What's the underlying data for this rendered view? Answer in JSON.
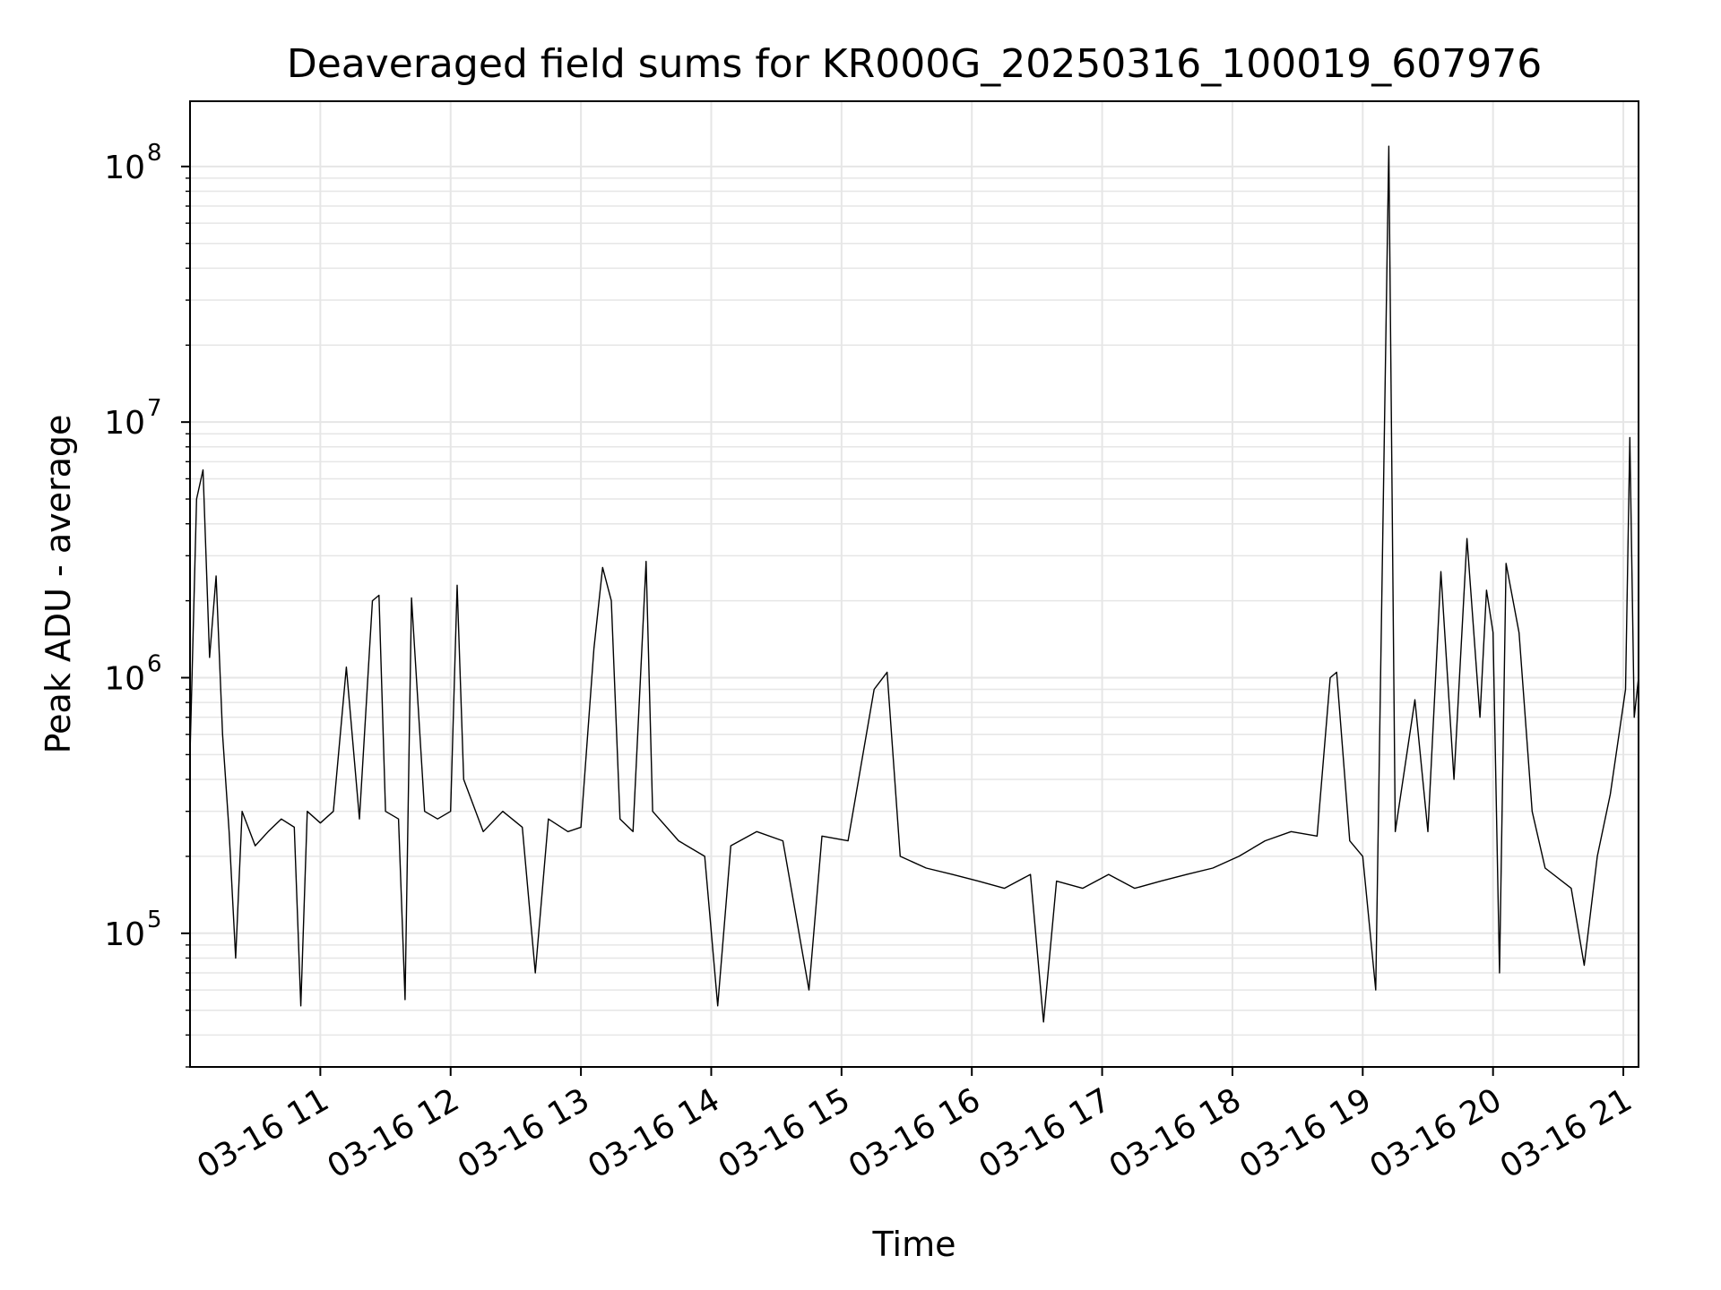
{
  "chart_data": {
    "type": "line",
    "title": "Deaveraged field sums for KR000G_20250316_100019_607976",
    "xlabel": "Time",
    "ylabel": "Peak ADU - average",
    "yscale": "log",
    "ylim": [
      30000,
      180000000
    ],
    "xlim": [
      "2025-03-16 10:00",
      "2025-03-16 21:07"
    ],
    "grid": true,
    "x_ticks": [
      {
        "label": "03-16 11",
        "time": "2025-03-16 11:00"
      },
      {
        "label": "03-16 12",
        "time": "2025-03-16 12:00"
      },
      {
        "label": "03-16 13",
        "time": "2025-03-16 13:00"
      },
      {
        "label": "03-16 14",
        "time": "2025-03-16 14:00"
      },
      {
        "label": "03-16 15",
        "time": "2025-03-16 15:00"
      },
      {
        "label": "03-16 16",
        "time": "2025-03-16 16:00"
      },
      {
        "label": "03-16 17",
        "time": "2025-03-16 17:00"
      },
      {
        "label": "03-16 18",
        "time": "2025-03-16 18:00"
      },
      {
        "label": "03-16 19",
        "time": "2025-03-16 19:00"
      },
      {
        "label": "03-16 20",
        "time": "2025-03-16 20:00"
      },
      {
        "label": "03-16 21",
        "time": "2025-03-16 21:00"
      }
    ],
    "y_ticks": [
      {
        "base": "10",
        "exp": "5",
        "value": 100000
      },
      {
        "base": "10",
        "exp": "6",
        "value": 1000000
      },
      {
        "base": "10",
        "exp": "7",
        "value": 10000000
      },
      {
        "base": "10",
        "exp": "8",
        "value": 100000000
      }
    ],
    "series": [
      {
        "color": "#000000",
        "points": [
          [
            "2025-03-16 10:00",
            500000
          ],
          [
            "2025-03-16 10:03",
            5000000
          ],
          [
            "2025-03-16 10:06",
            6500000
          ],
          [
            "2025-03-16 10:09",
            1200000
          ],
          [
            "2025-03-16 10:12",
            2500000
          ],
          [
            "2025-03-16 10:15",
            600000
          ],
          [
            "2025-03-16 10:18",
            250000
          ],
          [
            "2025-03-16 10:21",
            80000
          ],
          [
            "2025-03-16 10:24",
            300000
          ],
          [
            "2025-03-16 10:30",
            220000
          ],
          [
            "2025-03-16 10:36",
            250000
          ],
          [
            "2025-03-16 10:42",
            280000
          ],
          [
            "2025-03-16 10:48",
            260000
          ],
          [
            "2025-03-16 10:51",
            52000
          ],
          [
            "2025-03-16 10:54",
            300000
          ],
          [
            "2025-03-16 11:00",
            270000
          ],
          [
            "2025-03-16 11:06",
            300000
          ],
          [
            "2025-03-16 11:12",
            1100000
          ],
          [
            "2025-03-16 11:18",
            280000
          ],
          [
            "2025-03-16 11:24",
            2000000
          ],
          [
            "2025-03-16 11:27",
            2100000
          ],
          [
            "2025-03-16 11:30",
            300000
          ],
          [
            "2025-03-16 11:36",
            280000
          ],
          [
            "2025-03-16 11:39",
            55000
          ],
          [
            "2025-03-16 11:42",
            2050000
          ],
          [
            "2025-03-16 11:48",
            300000
          ],
          [
            "2025-03-16 11:54",
            280000
          ],
          [
            "2025-03-16 12:00",
            300000
          ],
          [
            "2025-03-16 12:03",
            2300000
          ],
          [
            "2025-03-16 12:06",
            400000
          ],
          [
            "2025-03-16 12:15",
            250000
          ],
          [
            "2025-03-16 12:24",
            300000
          ],
          [
            "2025-03-16 12:33",
            260000
          ],
          [
            "2025-03-16 12:39",
            70000
          ],
          [
            "2025-03-16 12:45",
            280000
          ],
          [
            "2025-03-16 12:54",
            250000
          ],
          [
            "2025-03-16 13:00",
            260000
          ],
          [
            "2025-03-16 13:06",
            1300000
          ],
          [
            "2025-03-16 13:10",
            2700000
          ],
          [
            "2025-03-16 13:14",
            2000000
          ],
          [
            "2025-03-16 13:18",
            280000
          ],
          [
            "2025-03-16 13:24",
            250000
          ],
          [
            "2025-03-16 13:30",
            2850000
          ],
          [
            "2025-03-16 13:33",
            300000
          ],
          [
            "2025-03-16 13:45",
            230000
          ],
          [
            "2025-03-16 13:57",
            200000
          ],
          [
            "2025-03-16 14:03",
            52000
          ],
          [
            "2025-03-16 14:09",
            220000
          ],
          [
            "2025-03-16 14:21",
            250000
          ],
          [
            "2025-03-16 14:33",
            230000
          ],
          [
            "2025-03-16 14:45",
            60000
          ],
          [
            "2025-03-16 14:51",
            240000
          ],
          [
            "2025-03-16 15:03",
            230000
          ],
          [
            "2025-03-16 15:15",
            900000
          ],
          [
            "2025-03-16 15:21",
            1050000
          ],
          [
            "2025-03-16 15:27",
            200000
          ],
          [
            "2025-03-16 15:39",
            180000
          ],
          [
            "2025-03-16 15:51",
            170000
          ],
          [
            "2025-03-16 16:03",
            160000
          ],
          [
            "2025-03-16 16:15",
            150000
          ],
          [
            "2025-03-16 16:27",
            170000
          ],
          [
            "2025-03-16 16:33",
            45000
          ],
          [
            "2025-03-16 16:39",
            160000
          ],
          [
            "2025-03-16 16:51",
            150000
          ],
          [
            "2025-03-16 17:03",
            170000
          ],
          [
            "2025-03-16 17:15",
            150000
          ],
          [
            "2025-03-16 17:27",
            160000
          ],
          [
            "2025-03-16 17:39",
            170000
          ],
          [
            "2025-03-16 17:51",
            180000
          ],
          [
            "2025-03-16 18:03",
            200000
          ],
          [
            "2025-03-16 18:15",
            230000
          ],
          [
            "2025-03-16 18:27",
            250000
          ],
          [
            "2025-03-16 18:39",
            240000
          ],
          [
            "2025-03-16 18:45",
            1000000
          ],
          [
            "2025-03-16 18:48",
            1050000
          ],
          [
            "2025-03-16 18:54",
            230000
          ],
          [
            "2025-03-16 19:00",
            200000
          ],
          [
            "2025-03-16 19:06",
            60000
          ],
          [
            "2025-03-16 19:12",
            120000000
          ],
          [
            "2025-03-16 19:15",
            250000
          ],
          [
            "2025-03-16 19:24",
            820000
          ],
          [
            "2025-03-16 19:30",
            250000
          ],
          [
            "2025-03-16 19:36",
            2600000
          ],
          [
            "2025-03-16 19:42",
            400000
          ],
          [
            "2025-03-16 19:48",
            3500000
          ],
          [
            "2025-03-16 19:54",
            700000
          ],
          [
            "2025-03-16 19:57",
            2200000
          ],
          [
            "2025-03-16 20:00",
            1500000
          ],
          [
            "2025-03-16 20:03",
            70000
          ],
          [
            "2025-03-16 20:06",
            2800000
          ],
          [
            "2025-03-16 20:12",
            1500000
          ],
          [
            "2025-03-16 20:18",
            300000
          ],
          [
            "2025-03-16 20:24",
            180000
          ],
          [
            "2025-03-16 20:36",
            150000
          ],
          [
            "2025-03-16 20:42",
            75000
          ],
          [
            "2025-03-16 20:48",
            200000
          ],
          [
            "2025-03-16 20:54",
            350000
          ],
          [
            "2025-03-16 20:58",
            600000
          ],
          [
            "2025-03-16 21:01",
            900000
          ],
          [
            "2025-03-16 21:03",
            8700000
          ],
          [
            "2025-03-16 21:05",
            700000
          ],
          [
            "2025-03-16 21:07",
            1000000
          ]
        ]
      }
    ]
  }
}
